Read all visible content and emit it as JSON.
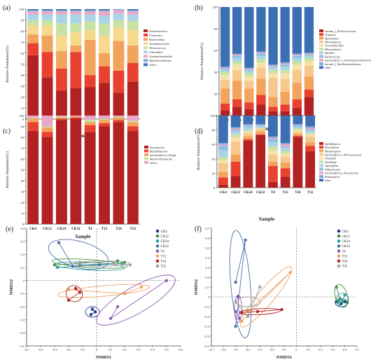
{
  "chart_data": [
    {
      "id": "a",
      "panel_label": "(a)",
      "type": "stacked-bar",
      "categories": [
        "CK4",
        "CK12",
        "CK24",
        "CK32",
        "T4",
        "T12",
        "T24",
        "T32"
      ],
      "xlabel": "Sample",
      "ylabel": "Relative Abundance(%)",
      "ylim": [
        0,
        100
      ],
      "yticks": [
        0,
        10,
        20,
        30,
        40,
        50,
        60,
        70,
        80,
        90,
        100
      ],
      "legend_position": "right",
      "series": [
        {
          "name": "Proteobacteria",
          "color": "#b22222",
          "values": [
            58,
            38,
            26,
            28,
            29,
            33,
            24,
            34
          ]
        },
        {
          "name": "Firmicutes",
          "color": "#e8412f",
          "values": [
            11,
            23,
            20,
            33,
            11,
            15,
            20,
            17
          ]
        },
        {
          "name": "Bacteroidota",
          "color": "#f2a35c",
          "values": [
            8,
            15,
            16,
            6,
            32,
            12,
            27,
            16
          ]
        },
        {
          "name": "Actinobacteriota",
          "color": "#f7d98e",
          "values": [
            8,
            9,
            14,
            12,
            9,
            16,
            12,
            14
          ]
        },
        {
          "name": "Deinococcota",
          "color": "#c8e2a4",
          "values": [
            5,
            5,
            11,
            8,
            8,
            11,
            7,
            8
          ]
        },
        {
          "name": "Chloroflexi",
          "color": "#a9d4e8",
          "values": [
            5,
            5,
            8,
            8,
            6,
            7,
            6,
            6
          ]
        },
        {
          "name": "Gemmatimonadota",
          "color": "#e8a8c8",
          "values": [
            3,
            3,
            3,
            3,
            3,
            4,
            3,
            3
          ]
        },
        {
          "name": "Halanaerobiaeota",
          "color": "#7fa8d4",
          "values": [
            1,
            1,
            1,
            1,
            1,
            1,
            1,
            1
          ]
        },
        {
          "name": "others",
          "color": "#3d6fb5",
          "values": [
            1,
            1,
            1,
            1,
            1,
            1,
            0,
            1
          ]
        }
      ]
    },
    {
      "id": "b",
      "panel_label": "(b)",
      "type": "stacked-bar",
      "categories": [
        "CK4",
        "CK12",
        "CK24",
        "CK32",
        "T4",
        "T12",
        "T24",
        "T32"
      ],
      "xlabel": "Sample",
      "ylabel": "Relative Abundance(%)",
      "ylim": [
        0,
        100
      ],
      "yticks": [
        0,
        20,
        40,
        60,
        80,
        100
      ],
      "legend_position": "right",
      "series": [
        {
          "name": "norank_f_Erilticoccaceae",
          "color": "#b22222",
          "values": [
            5,
            8,
            6,
            10,
            4,
            4,
            7,
            17
          ]
        },
        {
          "name": "Truepera",
          "color": "#e8412f",
          "values": [
            6,
            7,
            6,
            9,
            4,
            6,
            8,
            7
          ]
        },
        {
          "name": "Halomonas",
          "color": "#f2a35c",
          "values": [
            14,
            17,
            13,
            15,
            9,
            12,
            15,
            12
          ]
        },
        {
          "name": "Marinobacter",
          "color": "#f7c88e",
          "values": [
            8,
            10,
            7,
            10,
            18,
            12,
            12,
            10
          ]
        },
        {
          "name": "Oceanobacillus",
          "color": "#f7e3a8",
          "values": [
            4,
            5,
            4,
            5,
            4,
            5,
            5,
            4
          ]
        },
        {
          "name": "Marinobacter",
          "color": "#c8e2a4",
          "values": [
            3,
            3,
            3,
            3,
            3,
            3,
            3,
            3
          ]
        },
        {
          "name": "Bacillus",
          "color": "#a9d4e8",
          "values": [
            2,
            3,
            2,
            3,
            2,
            3,
            3,
            2
          ]
        },
        {
          "name": "Salinicoccus",
          "color": "#8cc0e0",
          "values": [
            1,
            2,
            1,
            2,
            1,
            2,
            2,
            1
          ]
        },
        {
          "name": "unclassified_o_Gammaproteobacteria",
          "color": "#e8a8c8",
          "values": [
            1,
            1,
            1,
            1,
            1,
            1,
            1,
            1
          ]
        },
        {
          "name": "norank_f_Xanthomonadaceae",
          "color": "#7fa8d4",
          "values": [
            1,
            1,
            1,
            1,
            1,
            1,
            1,
            1
          ]
        },
        {
          "name": "other",
          "color": "#3d6fb5",
          "values": [
            55,
            43,
            56,
            41,
            53,
            51,
            43,
            42
          ]
        }
      ]
    },
    {
      "id": "c",
      "panel_label": "(c)",
      "type": "stacked-bar",
      "categories": [
        "CK4",
        "CK12",
        "CK24",
        "CK32",
        "T4",
        "T12",
        "T24",
        "T32"
      ],
      "xlabel": "Sample",
      "ylabel": "Relative Abundance(%)",
      "ylim": [
        0,
        100
      ],
      "yticks": [
        0,
        10,
        20,
        30,
        40,
        50,
        60,
        70,
        80,
        90,
        100
      ],
      "legend_position": "right",
      "series": [
        {
          "name": "Ascomycota",
          "color": "#b22222",
          "values": [
            86,
            80,
            96,
            97,
            85,
            90,
            94,
            86
          ]
        },
        {
          "name": "Basidiomycota",
          "color": "#e8412f",
          "values": [
            8,
            5,
            1,
            1,
            6,
            3,
            2,
            4
          ]
        },
        {
          "name": "unclassified_k_Fungi",
          "color": "#f2a35c",
          "values": [
            3,
            4,
            1,
            1,
            3,
            3,
            2,
            4
          ]
        },
        {
          "name": "Mortierellomycota",
          "color": "#c8e2a4",
          "values": [
            1,
            1,
            1,
            0,
            2,
            1,
            1,
            1
          ]
        },
        {
          "name": "others",
          "color": "#e8a8c8",
          "values": [
            2,
            10,
            1,
            1,
            4,
            3,
            1,
            5
          ]
        }
      ]
    },
    {
      "id": "d",
      "panel_label": "(d)",
      "type": "stacked-bar",
      "categories": [
        "CK4",
        "CK12",
        "CK24",
        "CK32",
        "T4",
        "T12",
        "T24",
        "T32"
      ],
      "xlabel": "Sample",
      "ylabel": "Relative Abundance(%)",
      "ylim": [
        0,
        100
      ],
      "yticks": [
        0,
        20,
        40,
        60,
        80,
        100
      ],
      "legend_position": "right",
      "series": [
        {
          "name": "Spiddomyces",
          "color": "#b22222",
          "values": [
            4,
            16,
            65,
            73,
            8,
            15,
            70,
            50
          ]
        },
        {
          "name": "Penicillium",
          "color": "#e8412f",
          "values": [
            10,
            20,
            2,
            1,
            22,
            12,
            2,
            8
          ]
        },
        {
          "name": "Metanospora",
          "color": "#f2a35c",
          "values": [
            8,
            10,
            4,
            4,
            6,
            8,
            3,
            5
          ]
        },
        {
          "name": "unclassified_o_Microascaceae",
          "color": "#f7c88e",
          "values": [
            12,
            18,
            5,
            3,
            10,
            8,
            3,
            8
          ]
        },
        {
          "name": "Unnamia",
          "color": "#f7e3a8",
          "values": [
            4,
            6,
            2,
            1,
            6,
            4,
            2,
            3
          ]
        },
        {
          "name": "Acaulium",
          "color": "#c8e2a4",
          "values": [
            4,
            4,
            2,
            1,
            5,
            4,
            2,
            2
          ]
        },
        {
          "name": "Aspergillus",
          "color": "#a9d4e8",
          "values": [
            10,
            4,
            4,
            2,
            6,
            4,
            2,
            3
          ]
        },
        {
          "name": "Nakazawaea",
          "color": "#8cc0e0",
          "values": [
            6,
            2,
            2,
            1,
            4,
            2,
            2,
            2
          ]
        },
        {
          "name": "unclassified_p_Ascomycota",
          "color": "#e8a8c8",
          "values": [
            2,
            2,
            1,
            1,
            2,
            3,
            1,
            2
          ]
        },
        {
          "name": "Pezizospora",
          "color": "#7fa8d4",
          "values": [
            2,
            2,
            1,
            1,
            2,
            2,
            1,
            2
          ]
        },
        {
          "name": "other",
          "color": "#3d6fb5",
          "values": [
            38,
            16,
            12,
            12,
            29,
            38,
            12,
            15
          ]
        }
      ]
    },
    {
      "id": "e",
      "panel_label": "(e)",
      "type": "scatter",
      "xlabel": "NMDS1",
      "ylabel": "NMDS2",
      "xlim": [
        -0.5,
        0.6
      ],
      "ylim": [
        -0.5,
        0.4
      ],
      "xticks": [
        -0.5,
        -0.4,
        -0.3,
        -0.2,
        -0.1,
        0,
        0.1,
        0.2,
        0.3,
        0.4,
        0.5,
        0.6
      ],
      "yticks": [
        -0.5,
        -0.4,
        -0.3,
        -0.2,
        -0.1,
        0,
        0.1,
        0.2,
        0.3,
        0.4
      ],
      "legend_position": "top-right",
      "series": [
        {
          "name": "CK4",
          "color": "#1f3c88",
          "points": [
            [
              -0.03,
              -0.22
            ],
            [
              -0.01,
              -0.24
            ],
            [
              -0.04,
              -0.26
            ]
          ],
          "ellipse": [
            -0.03,
            -0.24,
            0.05,
            0.04,
            0
          ]
        },
        {
          "name": "CK12",
          "color": "#3d8b3d",
          "points": [
            [
              -0.3,
              0.12
            ],
            [
              0.15,
              0.15
            ],
            [
              0.2,
              0.14
            ]
          ],
          "ellipse": [
            -0.05,
            0.13,
            0.27,
            0.03,
            -4
          ]
        },
        {
          "name": "CK24",
          "color": "#2e9b9b",
          "points": [
            [
              -0.28,
              0.1
            ],
            [
              0.18,
              0.13
            ],
            [
              -0.12,
              0.12
            ]
          ],
          "ellipse": [
            -0.05,
            0.11,
            0.25,
            0.03,
            -3
          ]
        },
        {
          "name": "CK32",
          "color": "#4a6fa8",
          "points": [
            [
              -0.27,
              0.29
            ],
            [
              -0.17,
              0.11
            ],
            [
              0.02,
              0.12
            ]
          ],
          "ellipse": [
            -0.13,
            0.2,
            0.22,
            0.1,
            -15
          ]
        },
        {
          "name": "T4",
          "color": "#8a5cb0",
          "points": [
            [
              0.5,
              0.0
            ],
            [
              0.1,
              -0.29
            ],
            [
              0.15,
              -0.2
            ]
          ],
          "ellipse": [
            0.28,
            -0.15,
            0.32,
            0.1,
            30
          ]
        },
        {
          "name": "T12",
          "color": "#f0a060",
          "points": [
            [
              -0.2,
              -0.07
            ],
            [
              0.2,
              -0.1
            ],
            [
              0.32,
              -0.05
            ]
          ],
          "ellipse": [
            0.05,
            -0.08,
            0.33,
            0.04,
            5
          ]
        },
        {
          "name": "T24",
          "color": "#b22222",
          "points": [
            [
              -0.15,
              -0.06
            ],
            [
              -0.12,
              -0.09
            ],
            [
              -0.2,
              -0.15
            ]
          ],
          "ellipse": [
            -0.16,
            -0.1,
            0.06,
            0.06,
            -40
          ]
        },
        {
          "name": "T32",
          "color": "#a0a0a0",
          "points": [
            [
              -0.12,
              0.14
            ],
            [
              0.12,
              0.13
            ],
            [
              0.24,
              0.12
            ]
          ],
          "ellipse": [
            0.04,
            0.13,
            0.2,
            0.02,
            0
          ]
        }
      ]
    },
    {
      "id": "f",
      "panel_label": "(f)",
      "type": "scatter",
      "xlabel": "NMDS1",
      "ylabel": "NMDS2",
      "xlim": [
        -0.7,
        0.5
      ],
      "ylim": [
        -0.5,
        0.7
      ],
      "xticks": [
        -0.7,
        -0.6,
        -0.5,
        -0.4,
        -0.3,
        -0.2,
        -0.1,
        0,
        0.1,
        0.2,
        0.3,
        0.4,
        0.5
      ],
      "yticks": [
        -0.5,
        -0.4,
        -0.3,
        -0.2,
        -0.1,
        0,
        0.1,
        0.2,
        0.3,
        0.4,
        0.5,
        0.6,
        0.7
      ],
      "legend_position": "top-right",
      "series": [
        {
          "name": "CK4",
          "color": "#1f3c88",
          "points": [
            [
              0.33,
              -0.05
            ],
            [
              0.37,
              -0.07
            ],
            [
              0.4,
              -0.05
            ]
          ],
          "ellipse": [
            0.37,
            -0.06,
            0.05,
            0.04,
            0
          ]
        },
        {
          "name": "CK12",
          "color": "#3d8b3d",
          "points": [
            [
              0.33,
              0.1
            ],
            [
              0.36,
              -0.02
            ],
            [
              0.42,
              -0.06
            ]
          ],
          "ellipse": [
            0.37,
            0.01,
            0.05,
            0.12,
            15
          ]
        },
        {
          "name": "CK24",
          "color": "#2e9b9b",
          "points": [
            [
              0.35,
              -0.04
            ],
            [
              0.38,
              -0.05
            ],
            [
              0.4,
              0.02
            ]
          ],
          "ellipse": [
            0.38,
            -0.03,
            0.05,
            0.07,
            0
          ]
        },
        {
          "name": "CK32",
          "color": "#4a6fa8",
          "points": [
            [
              -0.5,
              0.15
            ],
            [
              -0.42,
              0.58
            ],
            [
              -0.5,
              -0.3
            ]
          ],
          "ellipse": [
            -0.46,
            0.13,
            0.08,
            0.55,
            5
          ]
        },
        {
          "name": "T4",
          "color": "#8a5cb0",
          "points": [
            [
              -0.48,
              0.0
            ],
            [
              -0.47,
              -0.22
            ],
            [
              -0.5,
              -0.15
            ]
          ],
          "ellipse": [
            -0.48,
            -0.12,
            0.03,
            0.14,
            0
          ]
        },
        {
          "name": "T12",
          "color": "#f0a060",
          "points": [
            [
              -0.45,
              -0.25
            ],
            [
              -0.05,
              0.25
            ],
            [
              -0.4,
              -0.15
            ]
          ],
          "ellipse": [
            -0.25,
            0.0,
            0.32,
            0.08,
            50
          ]
        },
        {
          "name": "T24",
          "color": "#b22222",
          "points": [
            [
              -0.45,
              -0.16
            ],
            [
              -0.12,
              -0.13
            ],
            [
              -0.32,
              -0.15
            ]
          ],
          "ellipse": [
            -0.3,
            -0.15,
            0.17,
            0.03,
            3
          ]
        },
        {
          "name": "T32",
          "color": "#a0a0a0",
          "points": [
            [
              -0.5,
              -0.05
            ],
            [
              -0.4,
              -0.2
            ],
            [
              -0.3,
              0.1
            ]
          ],
          "ellipse": [
            -0.4,
            -0.05,
            0.1,
            0.05,
            0
          ]
        }
      ]
    }
  ]
}
